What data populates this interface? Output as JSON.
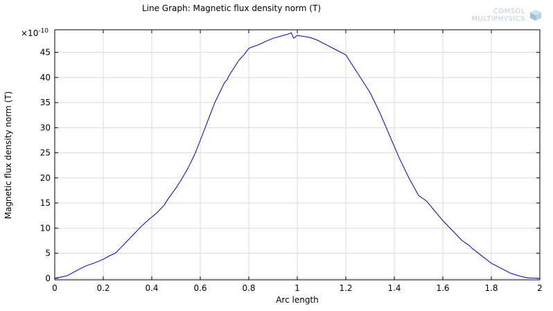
{
  "chart_data": {
    "type": "line",
    "title": "Line Graph: Magnetic flux density norm (T)",
    "xlabel": "Arc length",
    "ylabel": "Magnetic flux density norm (T)",
    "y_multiplier": "×10",
    "y_multiplier_exp": "-10",
    "xlim": [
      0,
      2
    ],
    "ylim": [
      -0.3,
      49.5
    ],
    "xticks": [
      "0",
      "0.2",
      "0.4",
      "0.6",
      "0.8",
      "1",
      "1.2",
      "1.4",
      "1.6",
      "1.8",
      "2"
    ],
    "yticks": [
      "0",
      "5",
      "10",
      "15",
      "20",
      "25",
      "30",
      "35",
      "40",
      "45"
    ],
    "grid": true,
    "series": [
      {
        "color": "#0000cc",
        "x": [
          0.0,
          0.02,
          0.05,
          0.07,
          0.1,
          0.13,
          0.16,
          0.2,
          0.23,
          0.25,
          0.27,
          0.3,
          0.33,
          0.36,
          0.39,
          0.42,
          0.45,
          0.47,
          0.5,
          0.52,
          0.55,
          0.58,
          0.6,
          0.62,
          0.64,
          0.66,
          0.68,
          0.7,
          0.71,
          0.72,
          0.74,
          0.76,
          0.78,
          0.8,
          0.81,
          0.84,
          0.87,
          0.9,
          0.93,
          0.96,
          0.975,
          0.985,
          1.0,
          1.01,
          1.05,
          1.08,
          1.12,
          1.16,
          1.2,
          1.22,
          1.26,
          1.3,
          1.34,
          1.38,
          1.42,
          1.46,
          1.5,
          1.53,
          1.54,
          1.56,
          1.6,
          1.64,
          1.68,
          1.71,
          1.72,
          1.76,
          1.8,
          1.84,
          1.88,
          1.92,
          1.95,
          1.97,
          1.99
        ],
        "y": [
          0.0,
          0.2,
          0.5,
          1.0,
          1.8,
          2.5,
          3.0,
          3.8,
          4.6,
          5.0,
          6.0,
          7.5,
          9.0,
          10.5,
          11.8,
          13.0,
          14.5,
          16.0,
          18.0,
          19.5,
          22.0,
          25.0,
          27.5,
          30.0,
          32.5,
          35.0,
          37.0,
          39.0,
          39.5,
          40.5,
          42.0,
          43.5,
          44.5,
          45.8,
          46.0,
          46.5,
          47.2,
          47.8,
          48.2,
          48.6,
          48.9,
          47.8,
          48.4,
          48.3,
          48.0,
          47.5,
          46.5,
          45.5,
          44.5,
          43.0,
          40.0,
          37.0,
          33.0,
          28.5,
          24.0,
          20.0,
          16.5,
          15.5,
          15.0,
          13.8,
          11.5,
          9.5,
          7.5,
          6.5,
          6.0,
          4.5,
          3.0,
          2.0,
          1.0,
          0.4,
          0.1,
          0.05,
          0.05
        ]
      }
    ]
  },
  "logo": {
    "line1": "COMSOL",
    "line2": "MULTIPHYSICS"
  }
}
